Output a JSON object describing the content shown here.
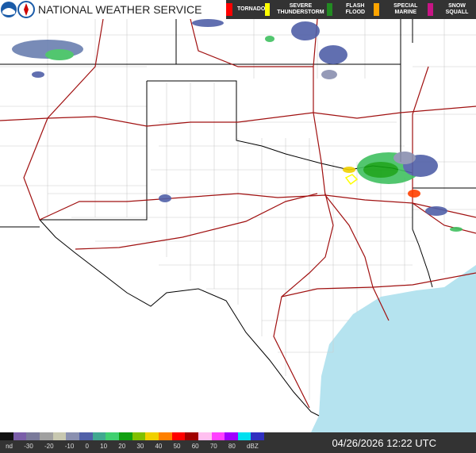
{
  "header": {
    "title": "NATIONAL WEATHER SERVICE",
    "logos": [
      "noaa-logo",
      "nws-logo"
    ]
  },
  "warnings_legend": [
    {
      "label": "TORNADO",
      "color": "#ff0000"
    },
    {
      "label": "SEVERE THUNDERSTORM",
      "color": "#ffff00"
    },
    {
      "label": "FLASH FLOOD",
      "color": "#228b22"
    },
    {
      "label": "SPECIAL MARINE",
      "color": "#ffa500"
    },
    {
      "label": "SNOW SQUALL",
      "color": "#c71585"
    }
  ],
  "reflectivity_scale": {
    "labels": [
      "nd",
      "-30",
      "-20",
      "-10",
      "0",
      "10",
      "20",
      "30",
      "40",
      "50",
      "60",
      "70",
      "80",
      "dBZ"
    ],
    "colors": [
      "#111111",
      "#7a5ea8",
      "#7a7a9a",
      "#a0a0a0",
      "#c8c8b0",
      "#8a90b0",
      "#5060a8",
      "#40a890",
      "#40d070",
      "#10a010",
      "#80c000",
      "#f0d000",
      "#ff8000",
      "#ff0000",
      "#a00000",
      "#ffc0f0",
      "#ff40ff",
      "#a000ff",
      "#00e0f0",
      "#3030c0"
    ]
  },
  "timestamp": "04/26/2026 12:22 UTC"
}
